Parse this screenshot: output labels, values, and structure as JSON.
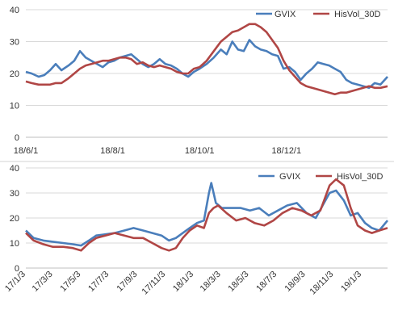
{
  "chart_data": [
    {
      "type": "line",
      "title": "",
      "xlabel": "",
      "ylabel": "",
      "ylim": [
        0,
        40
      ],
      "yticks": [
        0,
        10,
        20,
        30,
        40
      ],
      "xlim": [
        "2018-06-01",
        "2019-02-10"
      ],
      "xticks": [
        {
          "date": "2018-06-01",
          "label": "18/6/1"
        },
        {
          "date": "2018-08-01",
          "label": "18/8/1"
        },
        {
          "date": "2018-10-01",
          "label": "18/10/1"
        },
        {
          "date": "2018-12-01",
          "label": "18/12/1"
        }
      ],
      "grid": "horizontal",
      "legend": "top-right",
      "series": [
        {
          "name": "GVIX",
          "color": "#4a7ebb",
          "points": [
            [
              "2018-06-01",
              20.5
            ],
            [
              "2018-06-05",
              20
            ],
            [
              "2018-06-10",
              19
            ],
            [
              "2018-06-14",
              19.5
            ],
            [
              "2018-06-18",
              21
            ],
            [
              "2018-06-22",
              23
            ],
            [
              "2018-06-26",
              21
            ],
            [
              "2018-07-01",
              22.5
            ],
            [
              "2018-07-05",
              24
            ],
            [
              "2018-07-09",
              27
            ],
            [
              "2018-07-13",
              25
            ],
            [
              "2018-07-17",
              24
            ],
            [
              "2018-07-21",
              23
            ],
            [
              "2018-07-25",
              22
            ],
            [
              "2018-07-29",
              23.5
            ],
            [
              "2018-08-02",
              24
            ],
            [
              "2018-08-06",
              25
            ],
            [
              "2018-08-10",
              25.5
            ],
            [
              "2018-08-14",
              26
            ],
            [
              "2018-08-18",
              24.5
            ],
            [
              "2018-08-22",
              23
            ],
            [
              "2018-08-26",
              22
            ],
            [
              "2018-08-30",
              23
            ],
            [
              "2018-09-03",
              24.5
            ],
            [
              "2018-09-07",
              23
            ],
            [
              "2018-09-11",
              22.5
            ],
            [
              "2018-09-15",
              21.5
            ],
            [
              "2018-09-19",
              20
            ],
            [
              "2018-09-23",
              19
            ],
            [
              "2018-09-27",
              20.5
            ],
            [
              "2018-10-01",
              21.5
            ],
            [
              "2018-10-06",
              23
            ],
            [
              "2018-10-11",
              25
            ],
            [
              "2018-10-16",
              27.5
            ],
            [
              "2018-10-20",
              26
            ],
            [
              "2018-10-24",
              30
            ],
            [
              "2018-10-28",
              27.5
            ],
            [
              "2018-11-01",
              27
            ],
            [
              "2018-11-05",
              30.5
            ],
            [
              "2018-11-09",
              28.5
            ],
            [
              "2018-11-13",
              27.5
            ],
            [
              "2018-11-17",
              27
            ],
            [
              "2018-11-21",
              26
            ],
            [
              "2018-11-25",
              25.5
            ],
            [
              "2018-11-29",
              21.5
            ],
            [
              "2018-12-03",
              22
            ],
            [
              "2018-12-07",
              20.5
            ],
            [
              "2018-12-11",
              18
            ],
            [
              "2018-12-15",
              20
            ],
            [
              "2018-12-19",
              21.5
            ],
            [
              "2018-12-23",
              23.5
            ],
            [
              "2018-12-27",
              23
            ],
            [
              "2018-12-31",
              22.5
            ],
            [
              "2019-01-04",
              21.5
            ],
            [
              "2019-01-08",
              20.5
            ],
            [
              "2019-01-12",
              18
            ],
            [
              "2019-01-16",
              17
            ],
            [
              "2019-01-20",
              16.5
            ],
            [
              "2019-01-24",
              16
            ],
            [
              "2019-01-28",
              15.5
            ],
            [
              "2019-02-01",
              17
            ],
            [
              "2019-02-05",
              16.5
            ],
            [
              "2019-02-10",
              19
            ]
          ]
        },
        {
          "name": "HisVol_30D",
          "color": "#b04645",
          "points": [
            [
              "2018-06-01",
              17.5
            ],
            [
              "2018-06-05",
              17
            ],
            [
              "2018-06-10",
              16.5
            ],
            [
              "2018-06-14",
              16.5
            ],
            [
              "2018-06-18",
              16.5
            ],
            [
              "2018-06-22",
              17
            ],
            [
              "2018-06-26",
              17
            ],
            [
              "2018-07-01",
              18.5
            ],
            [
              "2018-07-05",
              20
            ],
            [
              "2018-07-09",
              21.5
            ],
            [
              "2018-07-13",
              22.5
            ],
            [
              "2018-07-17",
              23
            ],
            [
              "2018-07-21",
              23.5
            ],
            [
              "2018-07-25",
              24
            ],
            [
              "2018-07-29",
              24
            ],
            [
              "2018-08-02",
              24.5
            ],
            [
              "2018-08-06",
              25
            ],
            [
              "2018-08-10",
              25
            ],
            [
              "2018-08-14",
              24.5
            ],
            [
              "2018-08-18",
              23
            ],
            [
              "2018-08-22",
              23.5
            ],
            [
              "2018-08-26",
              22.5
            ],
            [
              "2018-08-30",
              22
            ],
            [
              "2018-09-03",
              22.5
            ],
            [
              "2018-09-07",
              22
            ],
            [
              "2018-09-11",
              21.5
            ],
            [
              "2018-09-15",
              20.5
            ],
            [
              "2018-09-19",
              20
            ],
            [
              "2018-09-23",
              20
            ],
            [
              "2018-09-27",
              21.5
            ],
            [
              "2018-10-01",
              22
            ],
            [
              "2018-10-06",
              24
            ],
            [
              "2018-10-11",
              27
            ],
            [
              "2018-10-16",
              30
            ],
            [
              "2018-10-20",
              31.5
            ],
            [
              "2018-10-24",
              33
            ],
            [
              "2018-10-28",
              33.5
            ],
            [
              "2018-11-01",
              34.5
            ],
            [
              "2018-11-05",
              35.5
            ],
            [
              "2018-11-09",
              35.5
            ],
            [
              "2018-11-13",
              34.5
            ],
            [
              "2018-11-17",
              33
            ],
            [
              "2018-11-21",
              30.5
            ],
            [
              "2018-11-25",
              28
            ],
            [
              "2018-11-29",
              24
            ],
            [
              "2018-12-03",
              21
            ],
            [
              "2018-12-07",
              19
            ],
            [
              "2018-12-11",
              17
            ],
            [
              "2018-12-15",
              16
            ],
            [
              "2018-12-19",
              15.5
            ],
            [
              "2018-12-23",
              15
            ],
            [
              "2018-12-27",
              14.5
            ],
            [
              "2018-12-31",
              14
            ],
            [
              "2019-01-04",
              13.5
            ],
            [
              "2019-01-08",
              14
            ],
            [
              "2019-01-12",
              14
            ],
            [
              "2019-01-16",
              14.5
            ],
            [
              "2019-01-20",
              15
            ],
            [
              "2019-01-24",
              15.5
            ],
            [
              "2019-01-28",
              16
            ],
            [
              "2019-02-01",
              15.5
            ],
            [
              "2019-02-05",
              15.5
            ],
            [
              "2019-02-10",
              16
            ]
          ]
        }
      ]
    },
    {
      "type": "line",
      "title": "",
      "xlabel": "",
      "ylabel": "",
      "ylim": [
        0,
        40
      ],
      "yticks": [
        0,
        10,
        20,
        30,
        40
      ],
      "xlim": [
        "2017-01-03",
        "2019-02-28"
      ],
      "xticks": [
        {
          "date": "2017-01-03",
          "label": "17/1/3"
        },
        {
          "date": "2017-03-03",
          "label": "17/3/3"
        },
        {
          "date": "2017-05-03",
          "label": "17/5/3"
        },
        {
          "date": "2017-07-03",
          "label": "17/7/3"
        },
        {
          "date": "2017-09-03",
          "label": "17/9/3"
        },
        {
          "date": "2017-11-03",
          "label": "17/11/3"
        },
        {
          "date": "2018-01-03",
          "label": "18/1/3"
        },
        {
          "date": "2018-03-03",
          "label": "18/3/3"
        },
        {
          "date": "2018-05-03",
          "label": "18/5/3"
        },
        {
          "date": "2018-07-03",
          "label": "18/7/3"
        },
        {
          "date": "2018-09-03",
          "label": "18/9/3"
        },
        {
          "date": "2018-11-03",
          "label": "18/11/3"
        },
        {
          "date": "2019-01-03",
          "label": "19/1/3"
        }
      ],
      "grid": "horizontal",
      "legend": "top-right",
      "series": [
        {
          "name": "GVIX",
          "color": "#4a7ebb",
          "points": [
            [
              "2017-01-03",
              15
            ],
            [
              "2017-01-20",
              12
            ],
            [
              "2017-02-10",
              11
            ],
            [
              "2017-03-03",
              10.5
            ],
            [
              "2017-03-25",
              10
            ],
            [
              "2017-04-15",
              9.5
            ],
            [
              "2017-05-03",
              9
            ],
            [
              "2017-05-20",
              11
            ],
            [
              "2017-06-05",
              13
            ],
            [
              "2017-06-25",
              13.5
            ],
            [
              "2017-07-15",
              14
            ],
            [
              "2017-08-05",
              15
            ],
            [
              "2017-08-25",
              16
            ],
            [
              "2017-09-15",
              15
            ],
            [
              "2017-10-05",
              14
            ],
            [
              "2017-10-25",
              13
            ],
            [
              "2017-11-10",
              11
            ],
            [
              "2017-11-25",
              12
            ],
            [
              "2017-12-10",
              14
            ],
            [
              "2017-12-25",
              16
            ],
            [
              "2018-01-10",
              18
            ],
            [
              "2018-01-25",
              19
            ],
            [
              "2018-02-05",
              30
            ],
            [
              "2018-02-10",
              34
            ],
            [
              "2018-02-20",
              26
            ],
            [
              "2018-03-05",
              24
            ],
            [
              "2018-03-25",
              24
            ],
            [
              "2018-04-15",
              24
            ],
            [
              "2018-05-05",
              23
            ],
            [
              "2018-05-25",
              24
            ],
            [
              "2018-06-15",
              21
            ],
            [
              "2018-07-05",
              23
            ],
            [
              "2018-07-25",
              25
            ],
            [
              "2018-08-15",
              26
            ],
            [
              "2018-09-05",
              22
            ],
            [
              "2018-09-25",
              20
            ],
            [
              "2018-10-10",
              25
            ],
            [
              "2018-10-25",
              30
            ],
            [
              "2018-11-08",
              31
            ],
            [
              "2018-11-25",
              27
            ],
            [
              "2018-12-10",
              21
            ],
            [
              "2018-12-25",
              22
            ],
            [
              "2019-01-10",
              18
            ],
            [
              "2019-01-25",
              16
            ],
            [
              "2019-02-10",
              15
            ],
            [
              "2019-02-28",
              19
            ]
          ]
        },
        {
          "name": "HisVol_30D",
          "color": "#b04645",
          "points": [
            [
              "2017-01-03",
              14
            ],
            [
              "2017-01-20",
              11
            ],
            [
              "2017-02-10",
              9.5
            ],
            [
              "2017-03-03",
              8.5
            ],
            [
              "2017-03-25",
              8.5
            ],
            [
              "2017-04-15",
              8
            ],
            [
              "2017-05-03",
              7
            ],
            [
              "2017-05-20",
              10
            ],
            [
              "2017-06-05",
              12
            ],
            [
              "2017-06-25",
              13
            ],
            [
              "2017-07-15",
              14
            ],
            [
              "2017-08-05",
              13
            ],
            [
              "2017-08-25",
              12
            ],
            [
              "2017-09-15",
              12
            ],
            [
              "2017-10-05",
              10
            ],
            [
              "2017-10-25",
              8
            ],
            [
              "2017-11-10",
              7
            ],
            [
              "2017-11-25",
              8
            ],
            [
              "2017-12-10",
              12
            ],
            [
              "2017-12-25",
              15
            ],
            [
              "2018-01-10",
              17
            ],
            [
              "2018-01-25",
              16
            ],
            [
              "2018-02-05",
              22
            ],
            [
              "2018-02-15",
              24
            ],
            [
              "2018-02-25",
              25
            ],
            [
              "2018-03-15",
              22
            ],
            [
              "2018-04-05",
              19
            ],
            [
              "2018-04-25",
              20
            ],
            [
              "2018-05-15",
              18
            ],
            [
              "2018-06-05",
              17
            ],
            [
              "2018-06-25",
              19
            ],
            [
              "2018-07-15",
              22
            ],
            [
              "2018-08-05",
              24
            ],
            [
              "2018-08-25",
              23
            ],
            [
              "2018-09-15",
              21
            ],
            [
              "2018-10-05",
              23
            ],
            [
              "2018-10-25",
              33
            ],
            [
              "2018-11-08",
              35.5
            ],
            [
              "2018-11-25",
              33
            ],
            [
              "2018-12-10",
              24
            ],
            [
              "2018-12-25",
              17
            ],
            [
              "2019-01-10",
              15
            ],
            [
              "2019-01-25",
              14
            ],
            [
              "2019-02-10",
              15
            ],
            [
              "2019-02-28",
              16
            ]
          ]
        }
      ]
    }
  ]
}
